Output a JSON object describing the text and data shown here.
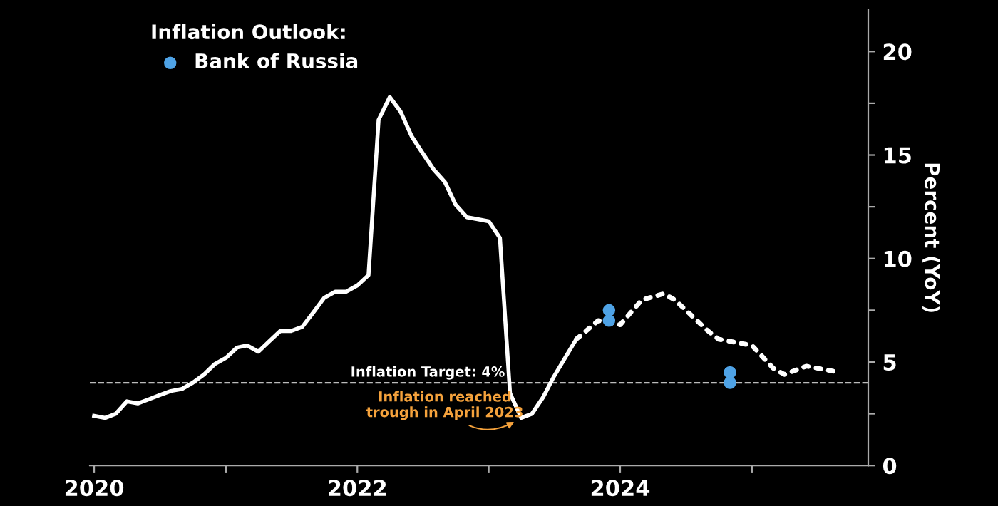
{
  "chart_data": {
    "type": "line",
    "ylabel": "Percent (YoY)",
    "legend_title": "Inflation Outlook:",
    "legend": "top left",
    "grid": false,
    "xlim": [
      "2019-12-20",
      "2025-11-20"
    ],
    "xticks": [
      {
        "value": "2020-01-01",
        "label": "2020"
      },
      {
        "value": "2021-01-01",
        "label": null
      },
      {
        "value": "2022-01-01",
        "label": "2022"
      },
      {
        "value": "2023-01-01",
        "label": null
      },
      {
        "value": "2024-01-01",
        "label": "2024"
      },
      {
        "value": "2025-01-01",
        "label": null
      }
    ],
    "ylim": [
      0,
      22
    ],
    "yticks": [
      0,
      {
        "value": 2.5,
        "label": null
      },
      5,
      {
        "value": 7.5,
        "label": null
      },
      10,
      {
        "value": 12.5,
        "label": null
      },
      15,
      {
        "value": 17.5,
        "label": null
      },
      20
    ],
    "series": [
      {
        "color": "#ffffff",
        "line_style": "solid",
        "marker": "none",
        "x": [
          "2020-01",
          "2020-02",
          "2020-03",
          "2020-04",
          "2020-05",
          "2020-06",
          "2020-07",
          "2020-08",
          "2020-09",
          "2020-10",
          "2020-11",
          "2020-12",
          "2021-01",
          "2021-02",
          "2021-03",
          "2021-04",
          "2021-05",
          "2021-06",
          "2021-07",
          "2021-08",
          "2021-09",
          "2021-10",
          "2021-11",
          "2021-12",
          "2022-01",
          "2022-02",
          "2022-03",
          "2022-04",
          "2022-05",
          "2022-06",
          "2022-07",
          "2022-08",
          "2022-09",
          "2022-10",
          "2022-11",
          "2022-12",
          "2023-01",
          "2023-02",
          "2023-03",
          "2023-04",
          "2023-05",
          "2023-06",
          "2023-07",
          "2023-08",
          "2023-09"
        ],
        "values": [
          2.4,
          2.3,
          2.5,
          3.1,
          3.0,
          3.2,
          3.4,
          3.6,
          3.7,
          4.0,
          4.4,
          4.9,
          5.2,
          5.7,
          5.8,
          5.5,
          6.0,
          6.5,
          6.5,
          6.7,
          7.4,
          8.1,
          8.4,
          8.4,
          8.7,
          9.2,
          16.7,
          17.8,
          17.1,
          15.9,
          15.1,
          14.3,
          13.7,
          12.6,
          12.0,
          11.9,
          11.8,
          11.0,
          3.5,
          2.3,
          2.5,
          3.3,
          4.3,
          5.2,
          6.1
        ]
      },
      {
        "color": "#ffffff",
        "line_style": "dotted",
        "marker": "none",
        "x": [
          "2023-09",
          "2023-11",
          "2024-01",
          "2024-03",
          "2024-05",
          "2024-06",
          "2024-09",
          "2024-10",
          "2025-01",
          "2025-03",
          "2025-04",
          "2025-06",
          "2025-09"
        ],
        "values": [
          6.1,
          7.0,
          6.8,
          8.0,
          8.3,
          8.0,
          6.5,
          6.1,
          5.8,
          4.7,
          4.4,
          4.8,
          4.5
        ]
      },
      {
        "type": "scatter",
        "name": "Bank of Russia",
        "color": "#4fa3e6",
        "marker": "circle",
        "x": [
          "2023-12",
          "2023-12",
          "2024-11",
          "2024-11"
        ],
        "values": [
          7.5,
          7.0,
          4.5,
          4.0
        ]
      }
    ],
    "ref_lines": [
      {
        "axis": "y",
        "value": 4,
        "label": "Inflation Target: 4%",
        "color": "#bbbbbb",
        "line_style": "dashed"
      }
    ],
    "annotations": [
      {
        "text": "Inflation reached\ntrough in April 2023",
        "x": "2023-04",
        "y": 2.3
      }
    ]
  }
}
